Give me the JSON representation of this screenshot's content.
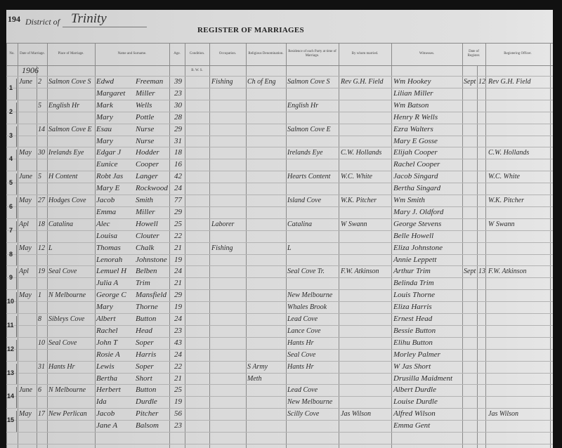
{
  "page_number": "194",
  "district_label": "District of",
  "district": "Trinity",
  "title": "REGISTER OF MARRIAGES",
  "year": "1906",
  "condition_sub": "B. W. S.",
  "columns": [
    "No.",
    "Date of Marriage.",
    "Place of Marriage.",
    "Name and Surname.",
    "Age.",
    "Condition.",
    "Occupation.",
    "Religious Denomination.",
    "Residence of each Party at time of Marriage.",
    "By whom married.",
    "Witnesses.",
    "Date of Register.",
    "Registering Officer."
  ],
  "entries": [
    {
      "no": "1",
      "month": "June",
      "day": "2",
      "place": "Salmon Cove S",
      "groom": {
        "first": "Edwd",
        "last": "Freeman",
        "age": "39",
        "occupation": "Fishing",
        "religion": "Ch of Eng",
        "residence": "Salmon Cove S"
      },
      "bride": {
        "first": "Margaret",
        "last": "Miller",
        "age": "23",
        "residence": ""
      },
      "married_by": "Rev G.H. Field",
      "witnesses": [
        "Wm Hookey",
        "Lilian Miller"
      ],
      "reg_month": "Sept",
      "reg_day": "12",
      "officer": "Rev G.H. Field"
    },
    {
      "no": "2",
      "month": "",
      "day": "5",
      "place": "English Hr",
      "groom": {
        "first": "Mark",
        "last": "Wells",
        "age": "30",
        "occupation": "",
        "religion": "",
        "residence": "English Hr"
      },
      "bride": {
        "first": "Mary",
        "last": "Pottle",
        "age": "28",
        "residence": ""
      },
      "married_by": "",
      "witnesses": [
        "Wm Batson",
        "Henry R Wells"
      ],
      "reg_month": "",
      "reg_day": "",
      "officer": ""
    },
    {
      "no": "3",
      "month": "",
      "day": "14",
      "place": "Salmon Cove E",
      "groom": {
        "first": "Esau",
        "last": "Nurse",
        "age": "29",
        "occupation": "",
        "religion": "",
        "residence": "Salmon Cove E"
      },
      "bride": {
        "first": "Mary",
        "last": "Nurse",
        "age": "31",
        "residence": ""
      },
      "married_by": "",
      "witnesses": [
        "Ezra Walters",
        "Mary E Gosse"
      ],
      "reg_month": "",
      "reg_day": "",
      "officer": ""
    },
    {
      "no": "4",
      "month": "May",
      "day": "30",
      "place": "Irelands Eye",
      "groom": {
        "first": "Edgar J",
        "last": "Hodder",
        "age": "18",
        "occupation": "",
        "religion": "",
        "residence": "Irelands Eye"
      },
      "bride": {
        "first": "Eunice",
        "last": "Cooper",
        "age": "16",
        "residence": ""
      },
      "married_by": "C.W. Hollands",
      "witnesses": [
        "Elijah Cooper",
        "Rachel Cooper"
      ],
      "reg_month": "",
      "reg_day": "",
      "officer": "C.W. Hollands"
    },
    {
      "no": "5",
      "month": "June",
      "day": "5",
      "place": "H Content",
      "groom": {
        "first": "Robt Jas",
        "last": "Langer",
        "age": "42",
        "occupation": "",
        "religion": "",
        "residence": "Hearts Content"
      },
      "bride": {
        "first": "Mary E",
        "last": "Rockwood",
        "age": "24",
        "residence": ""
      },
      "married_by": "W.C. White",
      "witnesses": [
        "Jacob Singard",
        "Bertha Singard"
      ],
      "reg_month": "",
      "reg_day": "",
      "officer": "W.C. White"
    },
    {
      "no": "6",
      "month": "May",
      "day": "27",
      "place": "Hodges Cove",
      "groom": {
        "first": "Jacob",
        "last": "Smith",
        "age": "77",
        "occupation": "",
        "religion": "",
        "residence": "Island Cove"
      },
      "bride": {
        "first": "Emma",
        "last": "Miller",
        "age": "29",
        "residence": ""
      },
      "married_by": "W.K. Pitcher",
      "witnesses": [
        "Wm Smith",
        "Mary J. Oldford"
      ],
      "reg_month": "",
      "reg_day": "",
      "officer": "W.K. Pitcher"
    },
    {
      "no": "7",
      "month": "Apl",
      "day": "18",
      "place": "Catalina",
      "groom": {
        "first": "Alec",
        "last": "Howell",
        "age": "25",
        "occupation": "Laborer",
        "religion": "",
        "residence": "Catalina"
      },
      "bride": {
        "first": "Louisa",
        "last": "Clouter",
        "age": "22",
        "residence": ""
      },
      "married_by": "W Swann",
      "witnesses": [
        "George Stevens",
        "Belle Howell"
      ],
      "reg_month": "",
      "reg_day": "",
      "officer": "W Swann"
    },
    {
      "no": "8",
      "month": "May",
      "day": "12",
      "place": "L",
      "groom": {
        "first": "Thomas",
        "last": "Chalk",
        "age": "21",
        "occupation": "Fishing",
        "religion": "",
        "residence": "L"
      },
      "bride": {
        "first": "Lenorah",
        "last": "Johnstone",
        "age": "19",
        "residence": ""
      },
      "married_by": "",
      "witnesses": [
        "Eliza Johnstone",
        "Annie Leppett"
      ],
      "reg_month": "",
      "reg_day": "",
      "officer": ""
    },
    {
      "no": "9",
      "month": "Apl",
      "day": "19",
      "place": "Seal Cove",
      "groom": {
        "first": "Lemuel H",
        "last": "Belben",
        "age": "24",
        "occupation": "",
        "religion": "",
        "residence": "Seal Cove Tr."
      },
      "bride": {
        "first": "Julia A",
        "last": "Trim",
        "age": "21",
        "residence": ""
      },
      "married_by": "F.W. Atkinson",
      "witnesses": [
        "Arthur Trim",
        "Belinda Trim"
      ],
      "reg_month": "Sept",
      "reg_day": "13",
      "officer": "F.W. Atkinson"
    },
    {
      "no": "10",
      "month": "May",
      "day": "1",
      "place": "N Melbourne",
      "groom": {
        "first": "George C",
        "last": "Mansfield",
        "age": "29",
        "occupation": "",
        "religion": "",
        "residence": "New Melbourne"
      },
      "bride": {
        "first": "Mary",
        "last": "Thorne",
        "age": "19",
        "residence": "Whales Brook"
      },
      "married_by": "",
      "witnesses": [
        "Louis Thorne",
        "Eliza Harris"
      ],
      "reg_month": "",
      "reg_day": "",
      "officer": ""
    },
    {
      "no": "11",
      "month": "",
      "day": "8",
      "place": "Sibleys Cove",
      "groom": {
        "first": "Albert",
        "last": "Button",
        "age": "24",
        "occupation": "",
        "religion": "",
        "residence": "Lead Cove"
      },
      "bride": {
        "first": "Rachel",
        "last": "Head",
        "age": "23",
        "residence": "Lance Cove"
      },
      "married_by": "",
      "witnesses": [
        "Ernest Head",
        "Bessie Button"
      ],
      "reg_month": "",
      "reg_day": "",
      "officer": ""
    },
    {
      "no": "12",
      "month": "",
      "day": "10",
      "place": "Seal Cove",
      "groom": {
        "first": "John T",
        "last": "Soper",
        "age": "43",
        "occupation": "",
        "religion": "",
        "residence": "Hants Hr"
      },
      "bride": {
        "first": "Rosie A",
        "last": "Harris",
        "age": "24",
        "residence": "Seal Cove"
      },
      "married_by": "",
      "witnesses": [
        "Elihu Button",
        "Morley Palmer"
      ],
      "reg_month": "",
      "reg_day": "",
      "officer": ""
    },
    {
      "no": "13",
      "month": "",
      "day": "31",
      "place": "Hants Hr",
      "groom": {
        "first": "Lewis",
        "last": "Soper",
        "age": "22",
        "occupation": "",
        "religion": "S Army",
        "residence": "Hants Hr"
      },
      "bride": {
        "first": "Bertha",
        "last": "Short",
        "age": "21",
        "religion": "Meth",
        "residence": ""
      },
      "married_by": "",
      "witnesses": [
        "W Jas Short",
        "Drusilla Maidment"
      ],
      "reg_month": "",
      "reg_day": "",
      "officer": ""
    },
    {
      "no": "14",
      "month": "June",
      "day": "6",
      "place": "N Melbourne",
      "groom": {
        "first": "Herbert",
        "last": "Button",
        "age": "25",
        "occupation": "",
        "religion": "",
        "residence": "Lead Cove"
      },
      "bride": {
        "first": "Ida",
        "last": "Durdle",
        "age": "19",
        "residence": "New Melbourne"
      },
      "married_by": "",
      "witnesses": [
        "Albert Durdle",
        "Louise Durdle"
      ],
      "reg_month": "",
      "reg_day": "",
      "officer": ""
    },
    {
      "no": "15",
      "month": "May",
      "day": "17",
      "place": "New Perlican",
      "groom": {
        "first": "Jacob",
        "last": "Pitcher",
        "age": "56",
        "occupation": "",
        "religion": "",
        "residence": "Scilly Cove"
      },
      "bride": {
        "first": "Jane A",
        "last": "Balsom",
        "age": "23",
        "residence": ""
      },
      "married_by": "Jas Wilson",
      "witnesses": [
        "Alfred Wilson",
        "Emma Gent"
      ],
      "reg_month": "",
      "reg_day": "",
      "officer": "Jas Wilson"
    }
  ]
}
